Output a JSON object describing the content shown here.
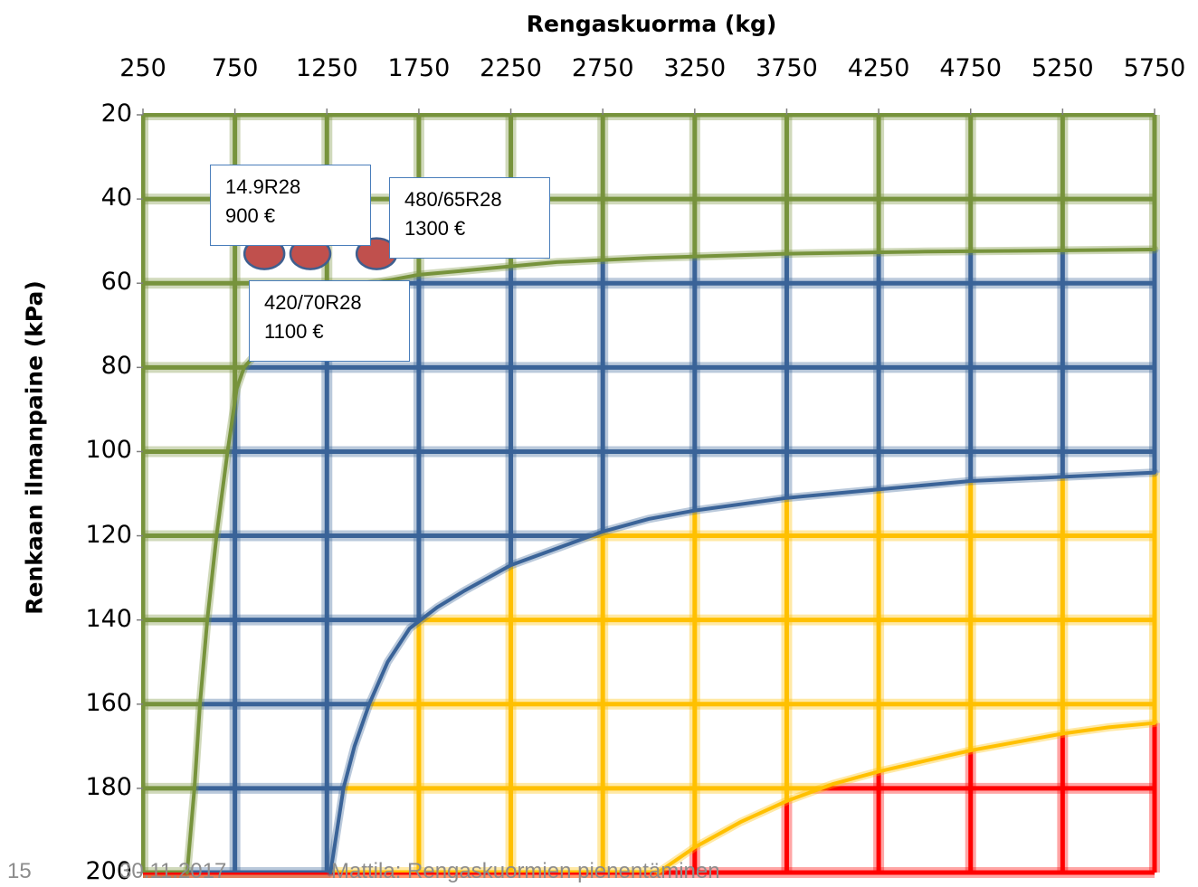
{
  "chart_data": {
    "type": "line",
    "xlabel": "Rengaskuorma (kg)",
    "ylabel": "Renkaan ilmanpaine  (kPa)",
    "x_ticks": [
      250,
      750,
      1250,
      1750,
      2250,
      2750,
      3250,
      3750,
      4250,
      4750,
      5250,
      5750
    ],
    "y_ticks": [
      20,
      40,
      60,
      80,
      100,
      120,
      140,
      160,
      180,
      200
    ],
    "xlim": [
      250,
      5750
    ],
    "ylim": [
      20,
      200
    ],
    "y_inverted": true,
    "x_axis_position": "top",
    "zones": [
      {
        "color": "#77933c",
        "boundary": [
          [
            490,
            200
          ],
          [
            530,
            180
          ],
          [
            560,
            160
          ],
          [
            600,
            140
          ],
          [
            650,
            120
          ],
          [
            710,
            100
          ],
          [
            760,
            85
          ],
          [
            800,
            80
          ],
          [
            900,
            75
          ],
          [
            1000,
            70
          ],
          [
            1100,
            66
          ],
          [
            1200,
            63
          ],
          [
            1300,
            62
          ],
          [
            1500,
            60
          ],
          [
            1750,
            58
          ],
          [
            2000,
            57
          ],
          [
            2500,
            55
          ],
          [
            3000,
            54
          ],
          [
            3750,
            53
          ],
          [
            4500,
            52.5
          ],
          [
            5750,
            52
          ]
        ]
      },
      {
        "color": "#3a6398",
        "boundary": [
          [
            1270,
            200
          ],
          [
            1340,
            180
          ],
          [
            1400,
            170
          ],
          [
            1480,
            160
          ],
          [
            1580,
            150
          ],
          [
            1700,
            142
          ],
          [
            1850,
            137
          ],
          [
            2000,
            133
          ],
          [
            2250,
            127
          ],
          [
            2500,
            123
          ],
          [
            2750,
            119
          ],
          [
            3000,
            116
          ],
          [
            3250,
            114
          ],
          [
            3750,
            111
          ],
          [
            4250,
            109
          ],
          [
            4750,
            107
          ],
          [
            5250,
            106
          ],
          [
            5750,
            105
          ]
        ]
      },
      {
        "color": "#ffc000",
        "boundary": [
          [
            3050,
            200
          ],
          [
            3250,
            194
          ],
          [
            3500,
            188
          ],
          [
            3750,
            183
          ],
          [
            4000,
            179
          ],
          [
            4250,
            176
          ],
          [
            4500,
            173.5
          ],
          [
            4750,
            171
          ],
          [
            5000,
            169
          ],
          [
            5250,
            167
          ],
          [
            5500,
            165.5
          ],
          [
            5750,
            164.5
          ]
        ]
      },
      {
        "color": "#ff0000",
        "boundary": []
      }
    ],
    "points": [
      {
        "x": 910,
        "y": 53
      },
      {
        "x": 1160,
        "y": 53
      },
      {
        "x": 1520,
        "y": 53
      }
    ],
    "point_color": "#c0504d",
    "grid": true
  },
  "callouts": [
    {
      "line1": "14.9R28",
      "line2": "900 €"
    },
    {
      "line1": "420/70R28",
      "line2": "1100 €"
    },
    {
      "line1": "480/65R28",
      "line2": "1300 €"
    }
  ],
  "footer": {
    "page": "15",
    "date": "30.11.2017",
    "title": "Mattila: Rengaskuormien pienentäminen"
  }
}
